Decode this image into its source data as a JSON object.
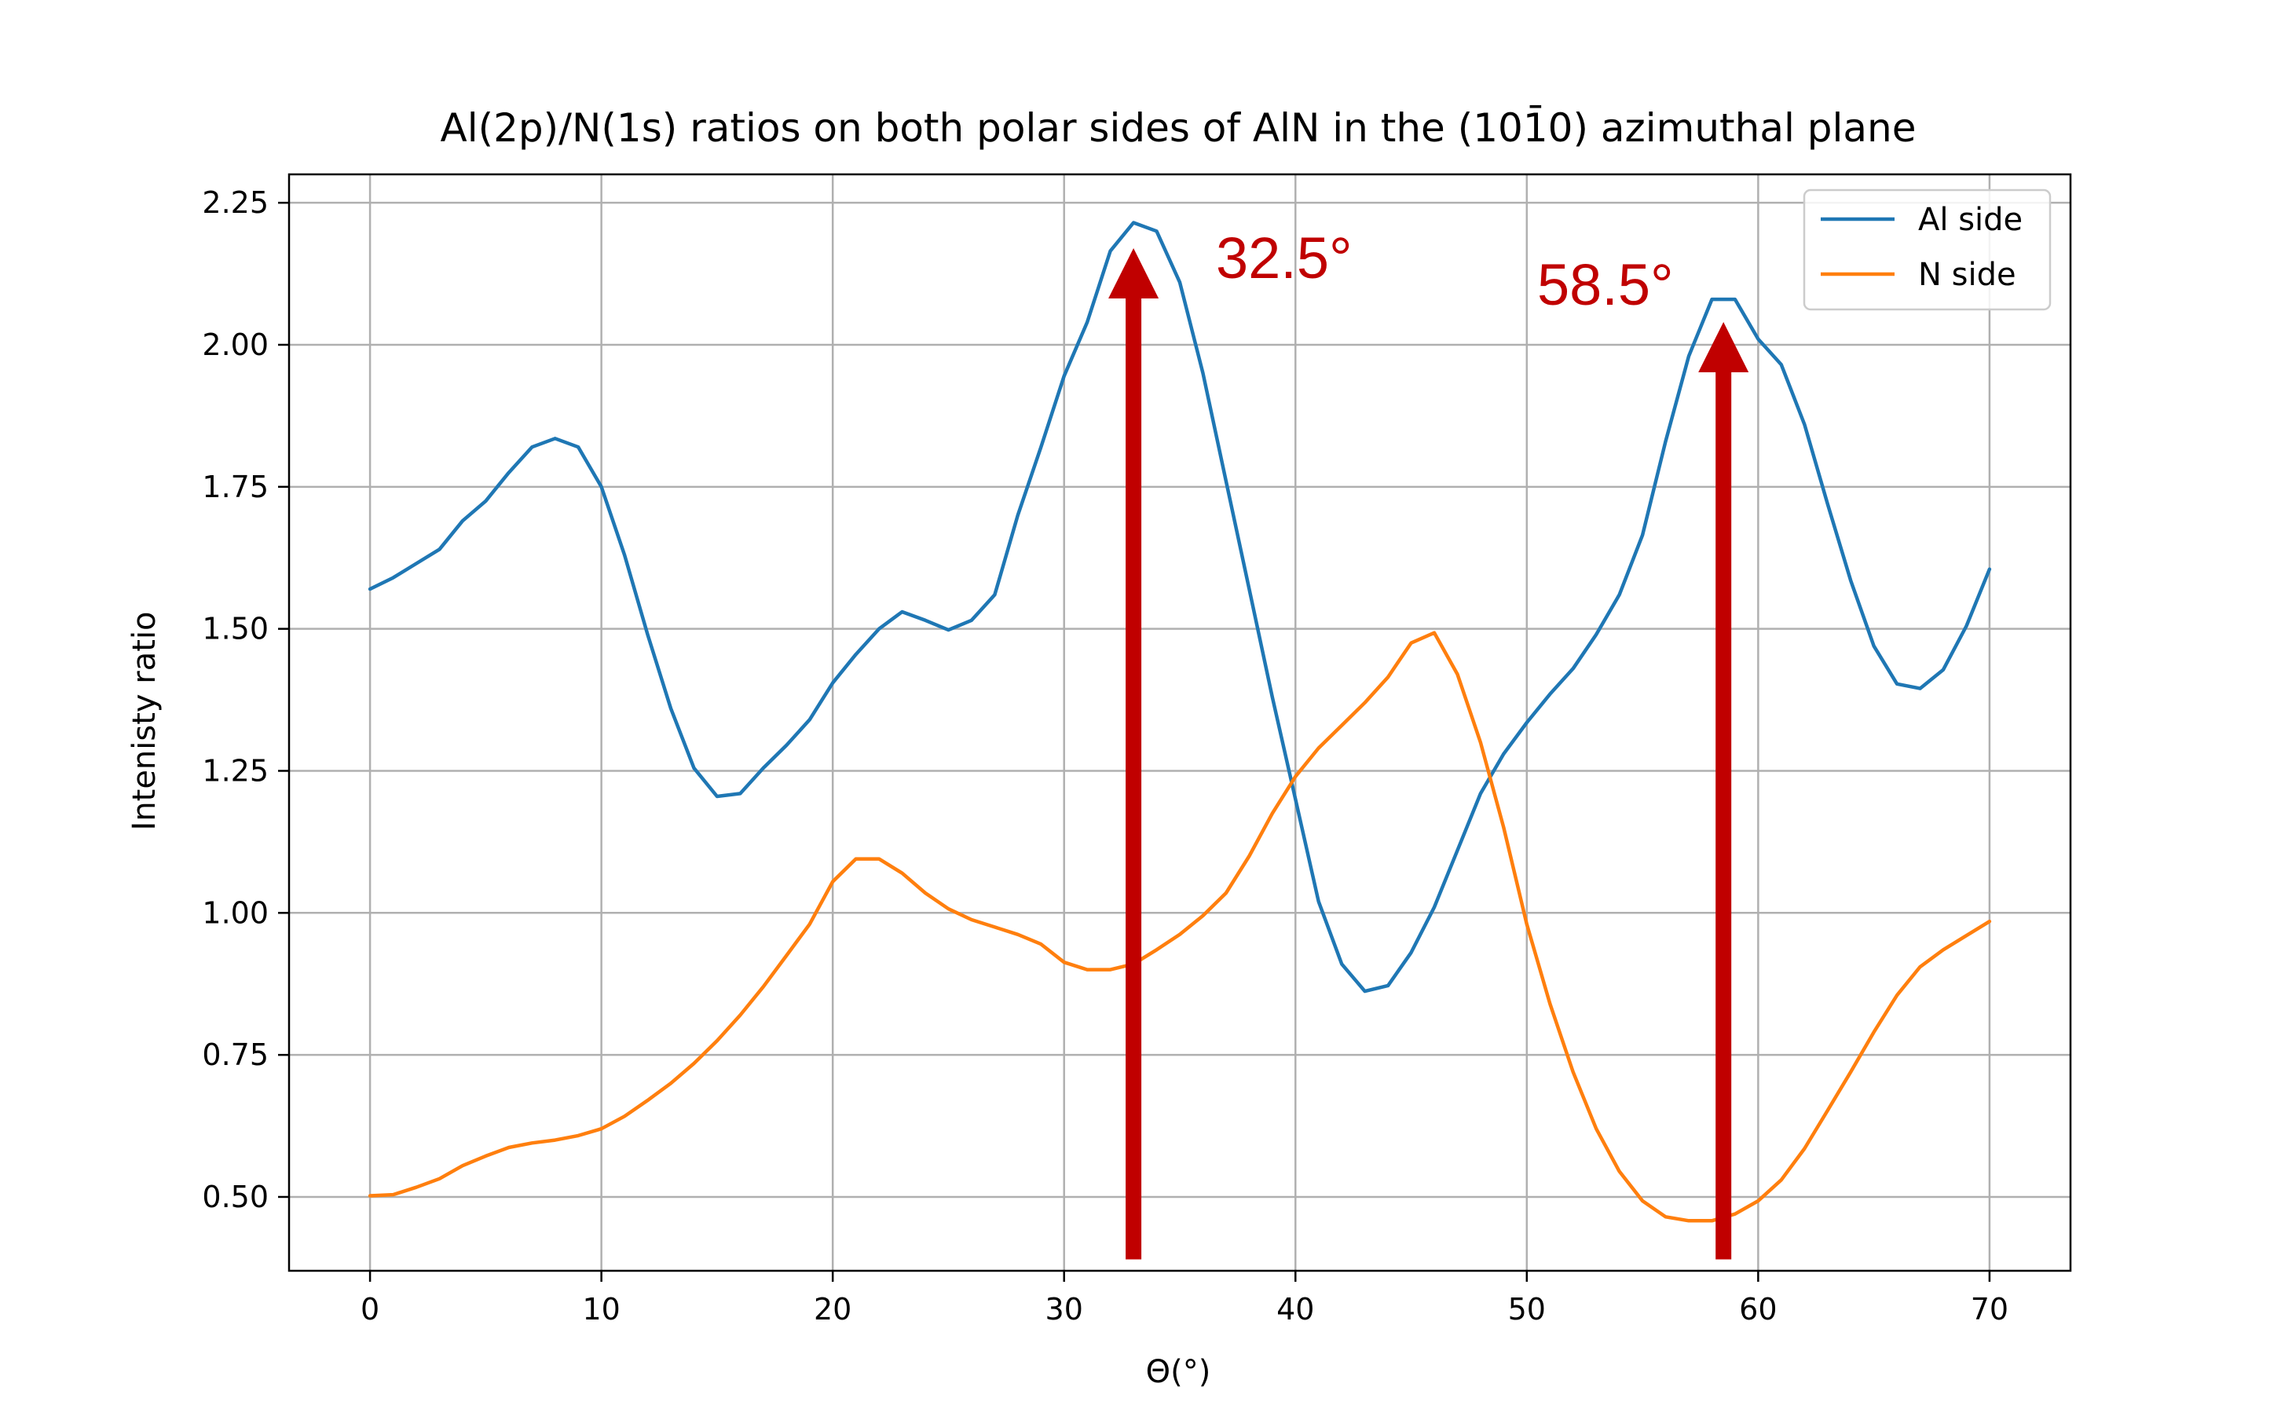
{
  "chart_data": {
    "type": "line",
    "title": "Al(2p)/N(1s) ratios on both polar sides of AlN in the (101̄0) azimuthal plane",
    "xlabel": "Θ(°)",
    "ylabel": "Intenisty ratio",
    "xlim": [
      -3.5,
      73.5
    ],
    "ylim": [
      0.37,
      2.3
    ],
    "xticks": [
      0,
      10,
      20,
      30,
      40,
      50,
      60,
      70
    ],
    "yticks": [
      0.5,
      0.75,
      1.0,
      1.25,
      1.5,
      1.75,
      2.0,
      2.25
    ],
    "xtick_labels": [
      "0",
      "10",
      "20",
      "30",
      "40",
      "50",
      "60",
      "70"
    ],
    "ytick_labels": [
      "0.50",
      "0.75",
      "1.00",
      "1.25",
      "1.50",
      "1.75",
      "2.00",
      "2.25"
    ],
    "grid": true,
    "legend_position": "top-right",
    "x": [
      0,
      1,
      2,
      3,
      4,
      5,
      6,
      7,
      8,
      9,
      10,
      11,
      12,
      13,
      14,
      15,
      16,
      17,
      18,
      19,
      20,
      21,
      22,
      23,
      24,
      25,
      26,
      27,
      28,
      29,
      30,
      31,
      32,
      33,
      34,
      35,
      36,
      37,
      38,
      39,
      40,
      41,
      42,
      43,
      44,
      45,
      46,
      47,
      48,
      49,
      50,
      51,
      52,
      53,
      54,
      55,
      56,
      57,
      58,
      59,
      60,
      61,
      62,
      63,
      64,
      65,
      66,
      67,
      68,
      69,
      70
    ],
    "series": [
      {
        "name": "Al side",
        "color": "#1f77b4",
        "values": [
          1.57,
          1.59,
          1.615,
          1.64,
          1.69,
          1.725,
          1.775,
          1.82,
          1.835,
          1.82,
          1.75,
          1.63,
          1.49,
          1.36,
          1.255,
          1.205,
          1.21,
          1.255,
          1.295,
          1.34,
          1.405,
          1.455,
          1.5,
          1.53,
          1.515,
          1.498,
          1.515,
          1.56,
          1.7,
          1.82,
          1.945,
          2.04,
          2.165,
          2.215,
          2.2,
          2.11,
          1.95,
          1.76,
          1.57,
          1.38,
          1.2,
          1.02,
          0.91,
          0.862,
          0.872,
          0.93,
          1.01,
          1.11,
          1.21,
          1.28,
          1.335,
          1.385,
          1.43,
          1.49,
          1.56,
          1.665,
          1.83,
          1.98,
          2.08,
          2.08,
          2.01,
          1.965,
          1.86,
          1.72,
          1.585,
          1.47,
          1.403,
          1.395,
          1.428,
          1.505,
          1.605
        ]
      },
      {
        "name": "N side",
        "color": "#ff7f0e",
        "values": [
          0.502,
          0.504,
          0.517,
          0.532,
          0.555,
          0.572,
          0.587,
          0.595,
          0.6,
          0.608,
          0.62,
          0.642,
          0.67,
          0.7,
          0.735,
          0.775,
          0.82,
          0.87,
          0.925,
          0.98,
          1.055,
          1.095,
          1.095,
          1.07,
          1.035,
          1.007,
          0.988,
          0.975,
          0.962,
          0.945,
          0.913,
          0.9,
          0.9,
          0.91,
          0.935,
          0.962,
          0.995,
          1.035,
          1.1,
          1.175,
          1.24,
          1.29,
          1.33,
          1.37,
          1.415,
          1.475,
          1.493,
          1.42,
          1.3,
          1.15,
          0.98,
          0.84,
          0.72,
          0.62,
          0.545,
          0.493,
          0.465,
          0.458,
          0.458,
          0.47,
          0.493,
          0.53,
          0.585,
          0.652,
          0.72,
          0.79,
          0.855,
          0.905,
          0.935,
          0.96,
          0.985
        ]
      }
    ],
    "annotations": [
      {
        "text": "32.5°",
        "arrow_x": 33,
        "arrow_y_from": 0.39,
        "arrow_y_to": 2.17,
        "color": "#c00000"
      },
      {
        "text": "58.5°",
        "arrow_x": 58.5,
        "arrow_y_from": 0.39,
        "arrow_y_to": 2.04,
        "color": "#c00000"
      }
    ]
  }
}
